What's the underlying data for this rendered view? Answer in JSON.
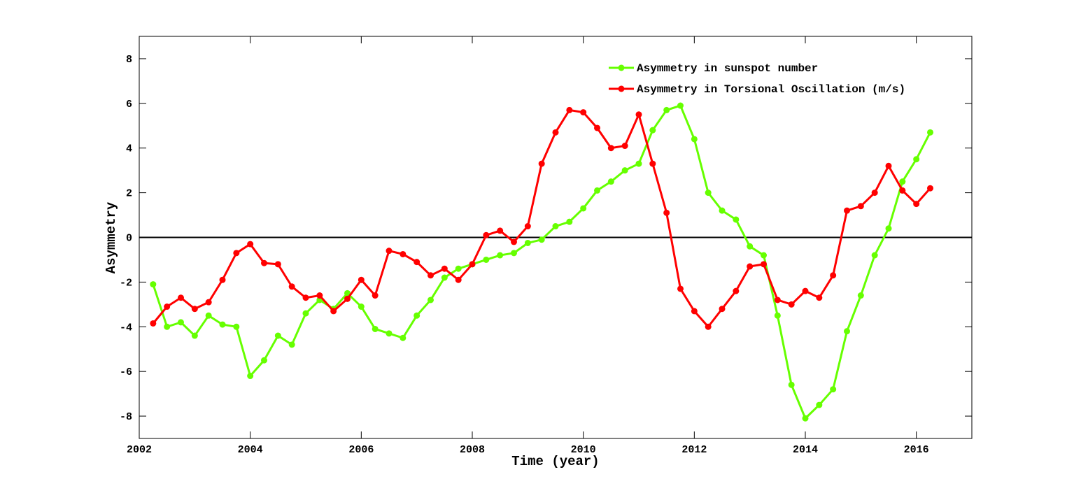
{
  "chart_data": {
    "type": "line",
    "xlabel": "Time (year)",
    "ylabel": "Asymmetry",
    "x": [
      2002.25,
      2002.5,
      2002.75,
      2003.0,
      2003.25,
      2003.5,
      2003.75,
      2004.0,
      2004.25,
      2004.5,
      2004.75,
      2005.0,
      2005.25,
      2005.5,
      2005.75,
      2006.0,
      2006.25,
      2006.5,
      2006.75,
      2007.0,
      2007.25,
      2007.5,
      2007.75,
      2008.0,
      2008.25,
      2008.5,
      2008.75,
      2009.0,
      2009.25,
      2009.5,
      2009.75,
      2010.0,
      2010.25,
      2010.5,
      2010.75,
      2011.0,
      2011.25,
      2011.5,
      2011.75,
      2012.0,
      2012.25,
      2012.5,
      2012.75,
      2013.0,
      2013.25,
      2013.5,
      2013.75,
      2014.0,
      2014.25,
      2014.5,
      2014.75,
      2015.0,
      2015.25,
      2015.5,
      2015.75,
      2016.0,
      2016.25
    ],
    "series": [
      {
        "name": "Asymmetry in sunspot number",
        "color": "#66ff00",
        "values": [
          -2.1,
          -4.0,
          -3.8,
          -4.4,
          -3.5,
          -3.9,
          -4.0,
          -6.2,
          -5.5,
          -4.4,
          -4.8,
          -3.4,
          -2.8,
          -3.2,
          -2.5,
          -3.1,
          -4.1,
          -4.3,
          -4.5,
          -3.5,
          -2.8,
          -1.8,
          -1.4,
          -1.2,
          -1.0,
          -0.8,
          -0.7,
          -0.25,
          -0.1,
          0.5,
          0.7,
          1.3,
          2.1,
          2.5,
          3.0,
          3.3,
          4.8,
          5.7,
          5.9,
          4.4,
          2.0,
          1.2,
          0.8,
          -0.4,
          -0.8,
          -3.5,
          -6.6,
          -8.1,
          -7.5,
          -6.8,
          -4.2,
          -2.6,
          -0.8,
          0.4,
          2.5,
          3.5,
          4.7
        ]
      },
      {
        "name": "Asymmetry in Torsional Oscillation (m/s)",
        "color": "#ff0000",
        "values": [
          -3.85,
          -3.1,
          -2.7,
          -3.2,
          -2.9,
          -1.9,
          -0.7,
          -0.3,
          -1.15,
          -1.2,
          -2.2,
          -2.7,
          -2.6,
          -3.3,
          -2.75,
          -1.9,
          -2.6,
          -0.6,
          -0.75,
          -1.1,
          -1.7,
          -1.4,
          -1.9,
          -1.2,
          0.1,
          0.3,
          -0.2,
          0.5,
          3.3,
          4.7,
          5.7,
          5.6,
          4.9,
          4.0,
          4.1,
          5.5,
          3.3,
          1.1,
          -2.3,
          -3.3,
          -4.0,
          -3.2,
          -2.4,
          -1.3,
          -1.2,
          -2.8,
          -3.0,
          -2.4,
          -2.7,
          -1.7,
          1.2,
          1.4,
          2.0,
          3.2,
          2.1,
          1.5,
          2.2
        ]
      }
    ],
    "xlim": [
      2002,
      2017
    ],
    "ylim": [
      -9,
      9
    ],
    "xticks": [
      2002,
      2004,
      2006,
      2008,
      2010,
      2012,
      2014,
      2016
    ],
    "yticks": [
      -8,
      -6,
      -4,
      -2,
      0,
      2,
      4,
      6,
      8
    ],
    "reference_line": 0,
    "grid": false,
    "legend": "upper right"
  }
}
